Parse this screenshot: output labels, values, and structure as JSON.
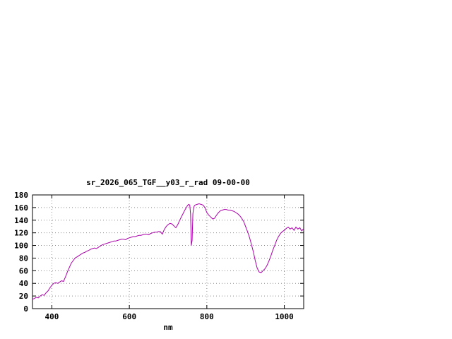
{
  "chart_data": {
    "type": "line",
    "title": "sr_2026_065_TGF__y03_r_rad 09-00-00",
    "xlabel": "nm",
    "ylabel": "",
    "xlim": [
      350,
      1050
    ],
    "ylim": [
      0,
      180
    ],
    "xticks": [
      400,
      600,
      800,
      1000
    ],
    "yticks": [
      0,
      20,
      40,
      60,
      80,
      100,
      120,
      140,
      160,
      180
    ],
    "grid": true,
    "legend": "none",
    "colors": {
      "line": "#aa00aa",
      "grid": "#8a8a8a",
      "axis": "#000000",
      "background": "#ffffff"
    },
    "series": [
      {
        "name": "",
        "x": [
          350,
          355,
          360,
          365,
          370,
          375,
          380,
          385,
          390,
          395,
          400,
          405,
          410,
          415,
          420,
          425,
          430,
          435,
          440,
          445,
          450,
          455,
          460,
          465,
          470,
          475,
          480,
          485,
          490,
          495,
          500,
          505,
          510,
          515,
          520,
          525,
          530,
          535,
          540,
          545,
          550,
          555,
          560,
          565,
          570,
          575,
          580,
          585,
          590,
          595,
          600,
          605,
          610,
          615,
          620,
          625,
          630,
          635,
          640,
          645,
          650,
          655,
          660,
          665,
          670,
          675,
          680,
          685,
          690,
          695,
          700,
          705,
          710,
          715,
          720,
          725,
          730,
          735,
          740,
          745,
          750,
          753,
          756,
          758,
          760,
          762,
          764,
          766,
          768,
          770,
          775,
          780,
          785,
          790,
          795,
          800,
          805,
          810,
          815,
          820,
          825,
          830,
          835,
          840,
          845,
          850,
          855,
          860,
          865,
          870,
          875,
          880,
          885,
          890,
          895,
          900,
          905,
          910,
          915,
          920,
          925,
          930,
          935,
          940,
          945,
          950,
          955,
          960,
          965,
          970,
          975,
          980,
          985,
          990,
          995,
          1000,
          1005,
          1010,
          1015,
          1020,
          1025,
          1030,
          1035,
          1040,
          1045,
          1050
        ],
        "y": [
          15,
          16,
          18,
          17,
          20,
          22,
          21,
          25,
          28,
          33,
          37,
          40,
          41,
          40,
          42,
          44,
          43,
          50,
          58,
          65,
          72,
          76,
          80,
          82,
          84,
          86,
          88,
          89,
          91,
          92,
          94,
          95,
          96,
          95,
          97,
          99,
          101,
          102,
          103,
          104,
          105,
          106,
          107,
          107,
          108,
          109,
          110,
          110,
          109,
          111,
          112,
          113,
          114,
          114,
          115,
          116,
          116,
          117,
          118,
          118,
          117,
          119,
          120,
          121,
          121,
          122,
          122,
          118,
          125,
          130,
          133,
          135,
          134,
          131,
          128,
          133,
          140,
          146,
          152,
          158,
          163,
          165,
          164,
          150,
          100,
          108,
          150,
          160,
          163,
          164,
          165,
          166,
          165,
          164,
          160,
          152,
          148,
          145,
          142,
          143,
          148,
          152,
          155,
          156,
          157,
          157,
          156,
          156,
          155,
          154,
          152,
          150,
          147,
          143,
          138,
          130,
          122,
          113,
          102,
          90,
          76,
          64,
          58,
          57,
          60,
          63,
          68,
          75,
          83,
          92,
          100,
          108,
          114,
          119,
          122,
          124,
          127,
          129,
          126,
          128,
          124,
          129,
          126,
          128,
          123,
          127
        ]
      }
    ]
  }
}
